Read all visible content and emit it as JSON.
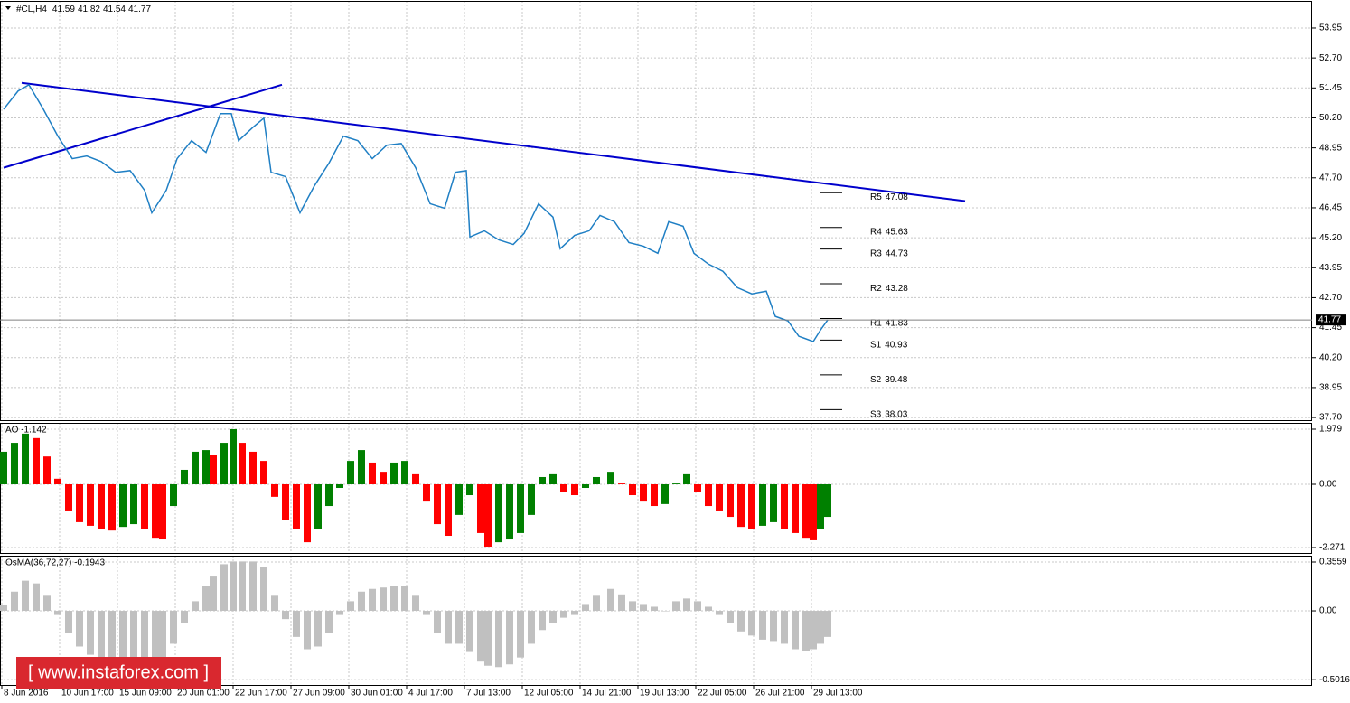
{
  "watermark": "[ www.instaforex.com ]",
  "chart_data": [
    {
      "type": "line",
      "symbol": "#CL,H4",
      "ohlc": [
        41.59,
        41.82,
        41.54,
        41.77
      ],
      "color": "#1f7fc4",
      "x": [
        1,
        5,
        8,
        12,
        16,
        20,
        24,
        28,
        32,
        36,
        40,
        42,
        46,
        49,
        53,
        57,
        61,
        64,
        66,
        70,
        73,
        75,
        79,
        83,
        87,
        91,
        95,
        99,
        103,
        107,
        111,
        115,
        119,
        123,
        126,
        129,
        130,
        134,
        138,
        142,
        145,
        149,
        153,
        155,
        159,
        163,
        166,
        170,
        174,
        178,
        182,
        185,
        189,
        192,
        196,
        200,
        204,
        208,
        212,
        214.5,
        218,
        221,
        225,
        227,
        229
      ],
      "values": [
        50.56,
        51.32,
        51.58,
        50.56,
        49.44,
        48.5,
        48.61,
        48.38,
        47.93,
        48.0,
        47.18,
        46.24,
        47.18,
        48.5,
        49.25,
        48.76,
        50.38,
        50.38,
        49.25,
        49.81,
        50.19,
        47.93,
        47.75,
        46.24,
        47.37,
        48.31,
        49.44,
        49.25,
        48.5,
        49.06,
        49.13,
        48.12,
        46.62,
        46.43,
        47.93,
        48.0,
        45.23,
        45.49,
        45.11,
        44.92,
        45.38,
        46.62,
        46.06,
        44.74,
        45.3,
        45.49,
        46.13,
        45.87,
        45.0,
        44.85,
        44.55,
        45.87,
        45.68,
        44.55,
        44.1,
        43.8,
        43.12,
        42.86,
        42.97,
        41.92,
        41.73,
        41.09,
        40.87,
        41.35,
        41.77
      ],
      "xlim": [
        0,
        363
      ],
      "ylim": [
        37.59,
        55.08
      ],
      "yticks": [
        53.95,
        {
          "value": 52.7,
          "label": "52.70"
        },
        51.45,
        {
          "value": 50.2,
          "label": "50.20"
        },
        48.95,
        {
          "value": 47.7,
          "label": "47.70"
        },
        46.45,
        {
          "value": 45.2,
          "label": "45.20"
        },
        43.95,
        {
          "value": 42.7,
          "label": "42.70"
        },
        41.45,
        {
          "value": 40.2,
          "label": "40.20"
        },
        38.95,
        {
          "value": 37.7,
          "label": "37.70"
        }
      ],
      "xticks": [
        {
          "value": 0.5,
          "label": "8 Jun 2016"
        },
        {
          "value": 16.5,
          "label": "10 Jun 17:00"
        },
        {
          "value": 32.5,
          "label": "15 Jun 09:00"
        },
        {
          "value": 48.5,
          "label": "20 Jun 01:00"
        },
        {
          "value": 64.5,
          "label": "22 Jun 17:00"
        },
        {
          "value": 80.5,
          "label": "27 Jun 09:00"
        },
        {
          "value": 96.5,
          "label": "30 Jun 01:00"
        },
        {
          "value": 112.5,
          "label": "4 Jul 17:00"
        },
        {
          "value": 128.5,
          "label": "7 Jul 13:00"
        },
        {
          "value": 144.5,
          "label": "12 Jul 05:00"
        },
        {
          "value": 160.5,
          "label": "14 Jul 21:00"
        },
        {
          "value": 176.5,
          "label": "19 Jul 13:00"
        },
        {
          "value": 192.5,
          "label": "22 Jul 05:00"
        },
        {
          "value": 208.5,
          "label": "26 Jul 21:00"
        },
        {
          "value": 224.5,
          "label": "29 Jul 13:00"
        }
      ],
      "trendlines": [
        {
          "color": "#0000cc",
          "x": [
            6,
            267
          ],
          "y": [
            51.66,
            46.73
          ]
        },
        {
          "color": "#0000cc",
          "x": [
            1,
            78
          ],
          "y": [
            48.12,
            51.58
          ]
        }
      ],
      "level_span": [
        227,
        233
      ],
      "levels": [
        {
          "name": "R5",
          "value": 47.08
        },
        {
          "name": "R4",
          "value": 45.63
        },
        {
          "name": "R3",
          "value": 44.73
        },
        {
          "name": "R2",
          "value": 43.28
        },
        {
          "name": "R1",
          "value": 41.83
        },
        {
          "name": "S1",
          "value": 40.93
        },
        {
          "name": "S2",
          "value": 39.48
        },
        {
          "name": "S3",
          "value": 38.03
        }
      ]
    },
    {
      "type": "bar",
      "title": "AO -1.142",
      "up_color": "#008000",
      "down_color": "#ff0000",
      "x": [
        1,
        4,
        7,
        10,
        13,
        16,
        19,
        22,
        25,
        28,
        31,
        34,
        37,
        40,
        43,
        45,
        48,
        51,
        54,
        57,
        59,
        62,
        64.5,
        67,
        70,
        73,
        76,
        79,
        82,
        85,
        88,
        91,
        94,
        97,
        100,
        103,
        106,
        109,
        112,
        115,
        118,
        121,
        124,
        127,
        130,
        133,
        135,
        138,
        141,
        144,
        147,
        150,
        153,
        156,
        159,
        162,
        165,
        169,
        172,
        175,
        178,
        181,
        184,
        187,
        190,
        193,
        196,
        199,
        202,
        205,
        208,
        211,
        214,
        217,
        220,
        223,
        225,
        227,
        229
      ],
      "values": [
        1.17,
        1.49,
        1.82,
        1.66,
        1.0,
        0.2,
        -0.94,
        -1.36,
        -1.49,
        -1.59,
        -1.66,
        -1.53,
        -1.43,
        -1.59,
        -1.92,
        -1.98,
        -0.78,
        0.52,
        1.17,
        1.23,
        1.07,
        1.49,
        1.98,
        1.49,
        1.17,
        0.84,
        -0.45,
        -1.27,
        -1.59,
        -2.08,
        -1.59,
        -0.78,
        -0.13,
        0.84,
        1.23,
        0.78,
        0.45,
        0.78,
        0.84,
        0.36,
        -0.62,
        -1.43,
        -1.85,
        -1.1,
        -0.39,
        -1.75,
        -2.24,
        -2.08,
        -1.98,
        -1.75,
        -1.1,
        0.26,
        0.36,
        -0.29,
        -0.39,
        -0.13,
        0.26,
        0.45,
        0.03,
        -0.39,
        -0.62,
        -0.78,
        -0.71,
        0.03,
        0.36,
        -0.29,
        -0.78,
        -0.94,
        -1.17,
        -1.53,
        -1.59,
        -1.49,
        -1.36,
        -1.59,
        -1.75,
        -1.92,
        -2.01,
        -1.59,
        -1.17
      ],
      "xlim": [
        0,
        363
      ],
      "ylim": [
        -2.466,
        2.206
      ],
      "yticks": [
        1.979,
        {
          "value": 0,
          "label": "0.00"
        },
        -2.271
      ]
    },
    {
      "type": "bar",
      "title": "OsMA(36,72,27) -0.1943",
      "color": "#c0c0c0",
      "x": [
        1,
        4,
        7,
        10,
        13,
        16,
        19,
        22,
        25,
        28,
        31,
        34,
        37,
        40,
        43,
        45,
        48,
        51,
        54,
        57,
        59,
        62,
        64.5,
        67,
        70,
        73,
        76,
        79,
        82,
        85,
        88,
        91,
        94,
        97,
        100,
        103,
        106,
        109,
        112,
        115,
        118,
        121,
        124,
        127,
        130,
        133,
        135,
        138,
        141,
        144,
        147,
        150,
        153,
        156,
        159,
        162,
        165,
        169,
        172,
        175,
        178,
        181,
        184,
        187,
        190,
        193,
        196,
        199,
        202,
        205,
        208,
        211,
        214,
        217,
        220,
        223,
        225,
        227,
        229
      ],
      "values": [
        0.04,
        0.14,
        0.22,
        0.2,
        0.11,
        -0.03,
        -0.16,
        -0.26,
        -0.32,
        -0.36,
        -0.39,
        -0.39,
        -0.39,
        -0.41,
        -0.39,
        -0.36,
        -0.24,
        -0.09,
        0.07,
        0.18,
        0.25,
        0.34,
        0.36,
        0.36,
        0.36,
        0.32,
        0.11,
        -0.06,
        -0.19,
        -0.28,
        -0.26,
        -0.16,
        -0.03,
        0.07,
        0.14,
        0.16,
        0.17,
        0.18,
        0.18,
        0.11,
        -0.03,
        -0.16,
        -0.24,
        -0.24,
        -0.3,
        -0.37,
        -0.4,
        -0.41,
        -0.39,
        -0.34,
        -0.24,
        -0.14,
        -0.09,
        -0.05,
        -0.03,
        0.05,
        0.11,
        0.16,
        0.12,
        0.07,
        0.05,
        0.03,
        0.0,
        0.07,
        0.09,
        0.07,
        0.03,
        -0.03,
        -0.09,
        -0.15,
        -0.18,
        -0.21,
        -0.22,
        -0.24,
        -0.28,
        -0.29,
        -0.28,
        -0.24,
        -0.19
      ],
      "xlim": [
        0,
        363
      ],
      "ylim": [
        -0.54,
        0.402
      ],
      "yticks": [
        0.3559,
        {
          "value": 0,
          "label": "0.00"
        },
        -0.5016
      ]
    }
  ]
}
